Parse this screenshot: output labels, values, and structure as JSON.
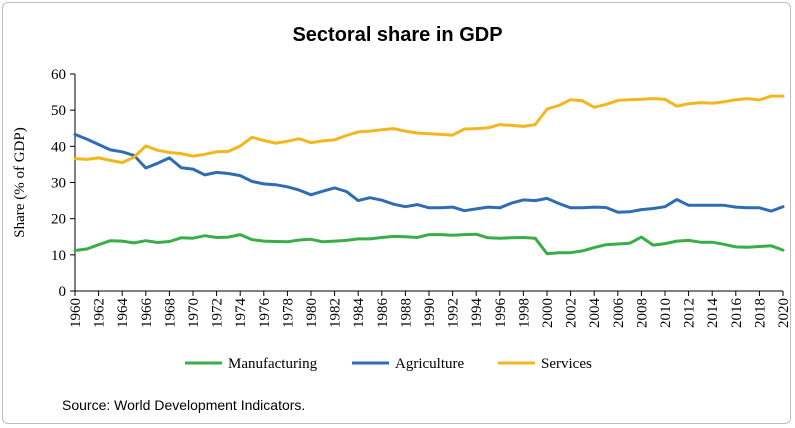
{
  "chart_data": {
    "type": "line",
    "title": "Sectoral share in GDP",
    "xlabel": "",
    "ylabel": "Share  (% of GDP)",
    "ylim": [
      0,
      60
    ],
    "yticks": [
      0,
      10,
      20,
      30,
      40,
      50,
      60
    ],
    "xlim": [
      1960,
      2020
    ],
    "xticks": [
      1960,
      1962,
      1964,
      1966,
      1968,
      1970,
      1972,
      1974,
      1976,
      1978,
      1980,
      1982,
      1984,
      1986,
      1988,
      1990,
      1992,
      1994,
      1996,
      1998,
      2000,
      2002,
      2004,
      2006,
      2008,
      2010,
      2012,
      2014,
      2016,
      2018,
      2020
    ],
    "grid": false,
    "legend": "bottom",
    "x": [
      1960,
      1961,
      1962,
      1963,
      1964,
      1965,
      1966,
      1967,
      1968,
      1969,
      1970,
      1971,
      1972,
      1973,
      1974,
      1975,
      1976,
      1977,
      1978,
      1979,
      1980,
      1981,
      1982,
      1983,
      1984,
      1985,
      1986,
      1987,
      1988,
      1989,
      1990,
      1991,
      1992,
      1993,
      1994,
      1995,
      1996,
      1997,
      1998,
      1999,
      2000,
      2001,
      2002,
      2003,
      2004,
      2005,
      2006,
      2007,
      2008,
      2009,
      2010,
      2011,
      2012,
      2013,
      2014,
      2015,
      2016,
      2017,
      2018,
      2019,
      2020
    ],
    "series": [
      {
        "name": "Manufacturing",
        "color": "#3aad48",
        "values": [
          11.2,
          11.6,
          12.8,
          13.9,
          13.8,
          13.3,
          13.9,
          13.4,
          13.7,
          14.7,
          14.6,
          15.3,
          14.8,
          14.9,
          15.6,
          14.2,
          13.8,
          13.7,
          13.6,
          14.1,
          14.3,
          13.6,
          13.8,
          14.0,
          14.4,
          14.4,
          14.8,
          15.1,
          15.0,
          14.8,
          15.6,
          15.6,
          15.4,
          15.6,
          15.7,
          14.7,
          14.6,
          14.7,
          14.8,
          14.6,
          10.3,
          10.6,
          10.6,
          11.1,
          12.0,
          12.8,
          13.0,
          13.2,
          14.9,
          12.7,
          13.1,
          13.8,
          14.0,
          13.5,
          13.5,
          12.9,
          12.2,
          12.1,
          12.3,
          12.5,
          11.3
        ]
      },
      {
        "name": "Agriculture",
        "color": "#2e6db4",
        "values": [
          43.3,
          42.0,
          40.5,
          39.0,
          38.5,
          37.5,
          34.0,
          35.3,
          36.8,
          34.1,
          33.7,
          32.1,
          32.8,
          32.5,
          31.9,
          30.3,
          29.6,
          29.4,
          28.8,
          27.9,
          26.6,
          27.6,
          28.5,
          27.5,
          25.0,
          25.8,
          25.1,
          24.0,
          23.3,
          23.9,
          23.0,
          23.0,
          23.2,
          22.2,
          22.7,
          23.2,
          23.0,
          24.3,
          25.2,
          25.0,
          25.6,
          24.2,
          23.0,
          23.0,
          23.2,
          23.1,
          21.8,
          21.9,
          22.5,
          22.8,
          23.3,
          25.3,
          23.7,
          23.7,
          23.7,
          23.7,
          23.2,
          23.0,
          23.0,
          22.1,
          23.3
        ]
      },
      {
        "name": "Services",
        "color": "#f2b71e",
        "values": [
          36.6,
          36.4,
          36.8,
          36.1,
          35.5,
          37.0,
          40.1,
          38.9,
          38.3,
          38.0,
          37.3,
          37.8,
          38.5,
          38.6,
          40.1,
          42.5,
          41.6,
          40.9,
          41.4,
          42.1,
          41.0,
          41.5,
          41.8,
          43.0,
          44.0,
          44.2,
          44.6,
          44.9,
          44.2,
          43.7,
          43.5,
          43.3,
          43.1,
          44.8,
          44.9,
          45.1,
          46.0,
          45.8,
          45.5,
          46.0,
          50.3,
          51.3,
          52.9,
          52.6,
          50.8,
          51.6,
          52.7,
          52.9,
          53.0,
          53.2,
          53.0,
          51.1,
          51.8,
          52.1,
          51.9,
          52.3,
          52.9,
          53.2,
          52.8,
          53.9,
          53.9
        ]
      }
    ]
  },
  "source": "Source: World Development Indicators."
}
